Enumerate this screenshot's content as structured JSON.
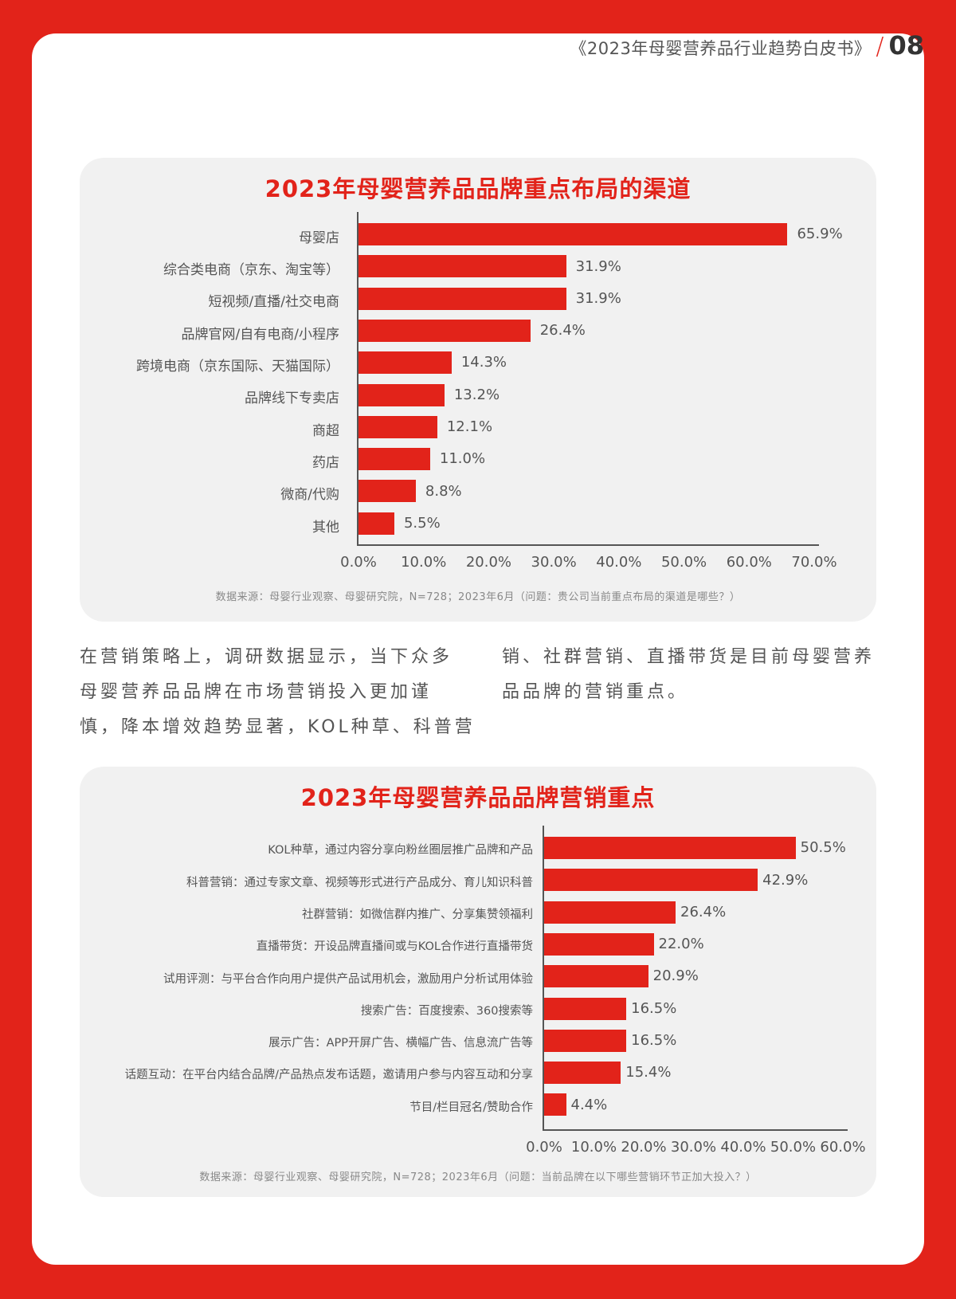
{
  "header": {
    "doc_title": "《2023年母婴营养品行业趋势白皮书》",
    "slash": "/",
    "page_number": "08"
  },
  "colors": {
    "accent": "#e2231a",
    "panel_bg": "#f1f1f1",
    "card_bg": "#ffffff",
    "text": "#555555"
  },
  "body_text": {
    "left_column": "在营销策略上，调研数据显示，当下众多母婴营养品品牌在市场营销投入更加谨慎，降本增效趋势显著，KOL种草、科普营",
    "left_lines": [
      "在营销策略上，调研数据显示，当下众多",
      "母婴营养品品牌在市场营销投入更加谨",
      "慎，降本增效趋势显著，KOL种草、科普营"
    ],
    "right_lines": [
      "销、社群营销、直播带货是目前母婴营养",
      "品品牌的营销重点。"
    ]
  },
  "chart_data": [
    {
      "type": "bar",
      "orientation": "horizontal",
      "title": "2023年母婴营养品品牌重点布局的渠道",
      "categories": [
        "母婴店",
        "综合类电商（京东、淘宝等）",
        "短视频/直播/社交电商",
        "品牌官网/自有电商/小程序",
        "跨境电商（京东国际、天猫国际）",
        "品牌线下专卖店",
        "商超",
        "药店",
        "微商/代购",
        "其他"
      ],
      "values": [
        65.9,
        31.9,
        31.9,
        26.4,
        14.3,
        13.2,
        12.1,
        11.0,
        8.8,
        5.5
      ],
      "value_labels": [
        "65.9%",
        "31.9%",
        "31.9%",
        "26.4%",
        "14.3%",
        "13.2%",
        "12.1%",
        "11.0%",
        "8.8%",
        "5.5%"
      ],
      "xlim": [
        0,
        70
      ],
      "xticks": [
        "0.0%",
        "10.0%",
        "20.0%",
        "30.0%",
        "40.0%",
        "50.0%",
        "60.0%",
        "70.0%"
      ],
      "xlabel": "",
      "ylabel": "",
      "grid": false,
      "legend": null,
      "bar_color": "#e2231a",
      "source": "数据来源：母婴行业观察、母婴研究院，N=728；2023年6月（问题：贵公司当前重点布局的渠道是哪些？）"
    },
    {
      "type": "bar",
      "orientation": "horizontal",
      "title": "2023年母婴营养品品牌营销重点",
      "categories": [
        "KOL种草，通过内容分享向粉丝圈层推广品牌和产品",
        "科普营销：通过专家文章、视频等形式进行产品成分、育儿知识科普",
        "社群营销：如微信群内推广、分享集赞领福利",
        "直播带货：开设品牌直播间或与KOL合作进行直播带货",
        "试用评测：与平台合作向用户提供产品试用机会，激励用户分析试用体验",
        "搜索广告：百度搜索、360搜索等",
        "展示广告：APP开屏广告、横幅广告、信息流广告等",
        "话题互动：在平台内结合品牌/产品热点发布话题，邀请用户参与内容互动和分享",
        "节目/栏目冠名/赞助合作"
      ],
      "values": [
        50.5,
        42.9,
        26.4,
        22.0,
        20.9,
        16.5,
        16.5,
        15.4,
        4.4
      ],
      "value_labels": [
        "50.5%",
        "42.9%",
        "26.4%",
        "22.0%",
        "20.9%",
        "16.5%",
        "16.5%",
        "15.4%",
        "4.4%"
      ],
      "xlim": [
        0,
        60
      ],
      "xticks": [
        "0.0%",
        "10.0%",
        "20.0%",
        "30.0%",
        "40.0%",
        "50.0%",
        "60.0%"
      ],
      "xlabel": "",
      "ylabel": "",
      "grid": false,
      "legend": null,
      "bar_color": "#e2231a",
      "source": "数据来源：母婴行业观察、母婴研究院，N=728；2023年6月（问题：当前品牌在以下哪些营销环节正加大投入？）"
    }
  ]
}
